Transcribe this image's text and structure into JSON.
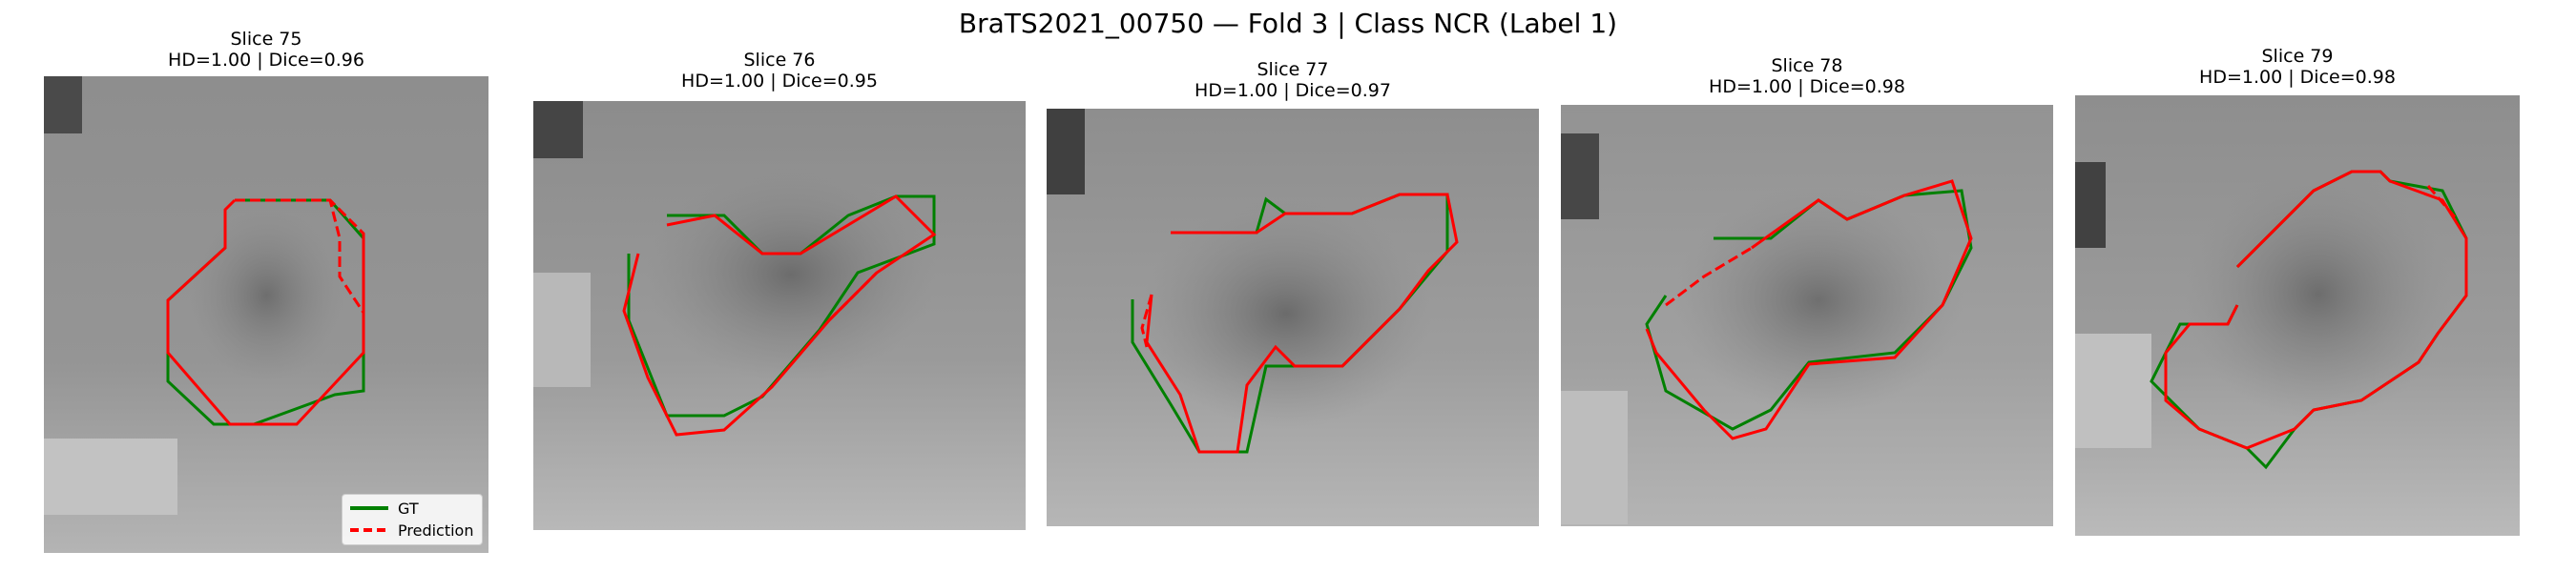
{
  "figure": {
    "title": "BraTS2021_00750 — Fold 3 | Class NCR (Label 1)"
  },
  "colors": {
    "gt": "#008000",
    "prediction": "#ff0000"
  },
  "legend": {
    "gt_label": "GT",
    "prediction_label": "Prediction"
  },
  "panels": [
    {
      "slice": "Slice 75",
      "metrics": "HD=1.00 | Dice=0.96"
    },
    {
      "slice": "Slice 76",
      "metrics": "HD=1.00 | Dice=0.95"
    },
    {
      "slice": "Slice 77",
      "metrics": "HD=1.00 | Dice=0.97"
    },
    {
      "slice": "Slice 78",
      "metrics": "HD=1.00 | Dice=0.98"
    },
    {
      "slice": "Slice 79",
      "metrics": "HD=1.00 | Dice=0.98"
    }
  ]
}
